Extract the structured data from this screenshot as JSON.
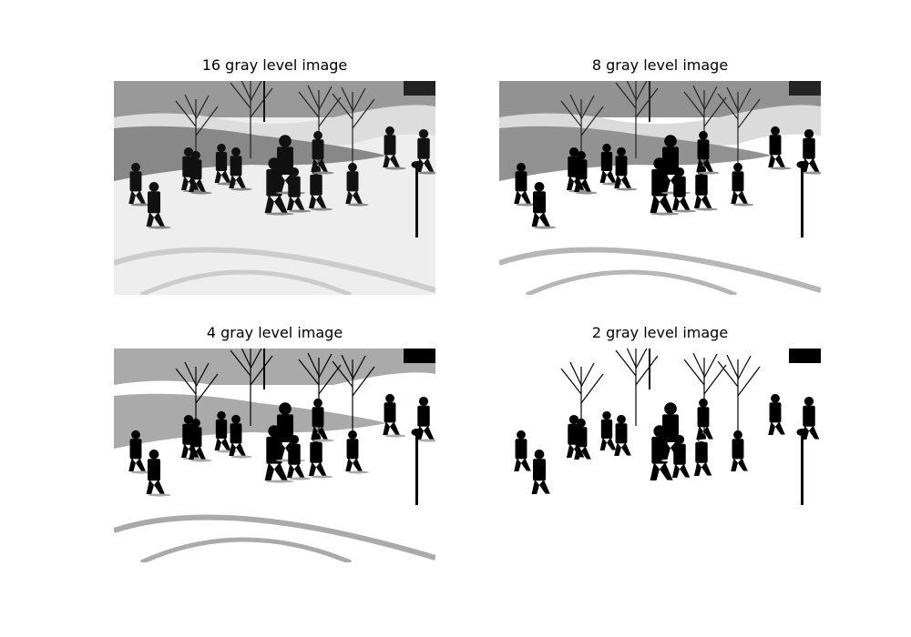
{
  "figure": {
    "panels": [
      {
        "title": "16 gray level image",
        "levels": 16
      },
      {
        "title": "8 gray level image",
        "levels": 8
      },
      {
        "title": "4 gray level image",
        "levels": 4
      },
      {
        "title": "2 gray level image",
        "levels": 2
      }
    ]
  }
}
